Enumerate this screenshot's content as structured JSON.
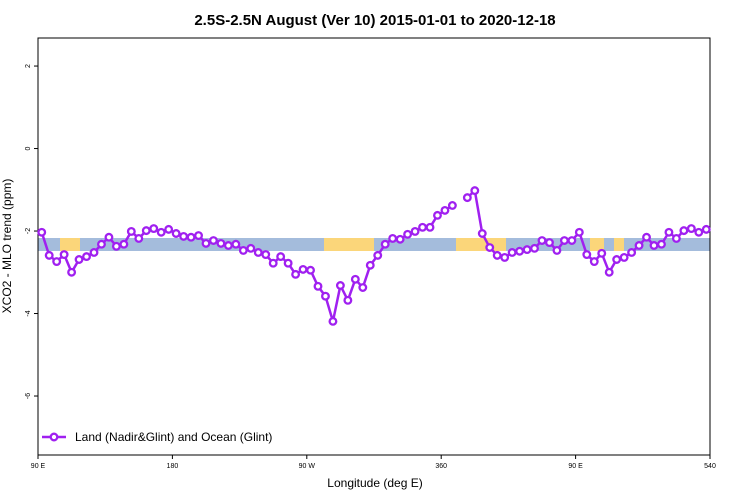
{
  "chart_data": {
    "type": "line",
    "title": "2.5S-2.5N August (Ver 10)   2015-01-01 to 2020-12-18",
    "x_label": "Longitude (deg E)",
    "y_label": "XCO2 - MLO trend (ppm)",
    "x": [
      92.5,
      97.5,
      102.5,
      107.5,
      112.5,
      117.5,
      122.5,
      127.5,
      132.5,
      137.5,
      142.5,
      147.5,
      152.5,
      157.5,
      162.5,
      167.5,
      172.5,
      177.5,
      182.5,
      187.5,
      192.5,
      197.5,
      202.5,
      207.5,
      212.5,
      217.5,
      222.5,
      227.5,
      232.5,
      237.5,
      242.5,
      247.5,
      252.5,
      257.5,
      262.5,
      267.5,
      272.5,
      277.5,
      282.5,
      287.5,
      292.5,
      297.5,
      302.5,
      307.5,
      312.5,
      317.5,
      322.5,
      327.5,
      332.5,
      337.5,
      342.5,
      347.5,
      352.5,
      357.5,
      362.5,
      367.5,
      372.5,
      377.5,
      382.5,
      387.5,
      392.5,
      397.5,
      402.5,
      407.5,
      412.5,
      417.5,
      422.5,
      427.5,
      432.5,
      437.5,
      442.5,
      447.5,
      452.5,
      457.5,
      462.5,
      467.5,
      472.5,
      477.5,
      482.5,
      487.5,
      492.5,
      497.5,
      502.5,
      507.5,
      512.5,
      517.5,
      522.5,
      527.5,
      532.5,
      537.5
    ],
    "series": [
      {
        "name": "Land (Nadir&Glint) and Ocean (Glint)",
        "color": "#a020f0",
        "values": [
          -2.03,
          -2.59,
          -2.74,
          -2.57,
          -3.0,
          -2.69,
          -2.62,
          -2.52,
          -2.32,
          -2.15,
          -2.37,
          -2.32,
          -2.01,
          -2.18,
          -1.99,
          -1.94,
          -2.03,
          -1.96,
          -2.06,
          -2.13,
          -2.15,
          -2.11,
          -2.3,
          -2.23,
          -2.3,
          -2.35,
          -2.32,
          -2.47,
          -2.42,
          -2.52,
          -2.57,
          -2.78,
          -2.62,
          -2.78,
          -3.05,
          -2.93,
          -2.95,
          -3.34,
          -3.58,
          -4.19,
          -3.32,
          -3.68,
          -3.17,
          -3.37,
          -2.83,
          -2.59,
          -2.32,
          -2.18,
          -2.2,
          -2.08,
          -2.01,
          -1.91,
          -1.91,
          -1.62,
          -1.5,
          -1.38,
          null,
          -1.19,
          -1.02,
          -2.06,
          -2.4,
          -2.59,
          -2.64,
          -2.52,
          -2.49,
          -2.45,
          -2.42,
          -2.23,
          -2.28,
          -2.47,
          -2.23,
          -2.23,
          -2.03,
          -2.57,
          -2.74,
          -2.54,
          -3.0,
          -2.69,
          -2.64,
          -2.52,
          -2.35,
          -2.15,
          -2.35,
          -2.32,
          -2.03,
          -2.18,
          -1.99,
          -1.94,
          -2.03,
          -1.96
        ]
      }
    ],
    "xlim": [
      90,
      540
    ],
    "xticks": [
      {
        "value": 90,
        "label": "90 E"
      },
      180,
      {
        "value": 270,
        "label": "90 W"
      },
      360,
      {
        "value": 450,
        "label": "90 E"
      },
      540
    ],
    "ylim": [
      -7.43,
      2.68
    ],
    "yticks": [
      2,
      0,
      -2,
      -4,
      -6
    ],
    "legend": "bottom-left"
  }
}
